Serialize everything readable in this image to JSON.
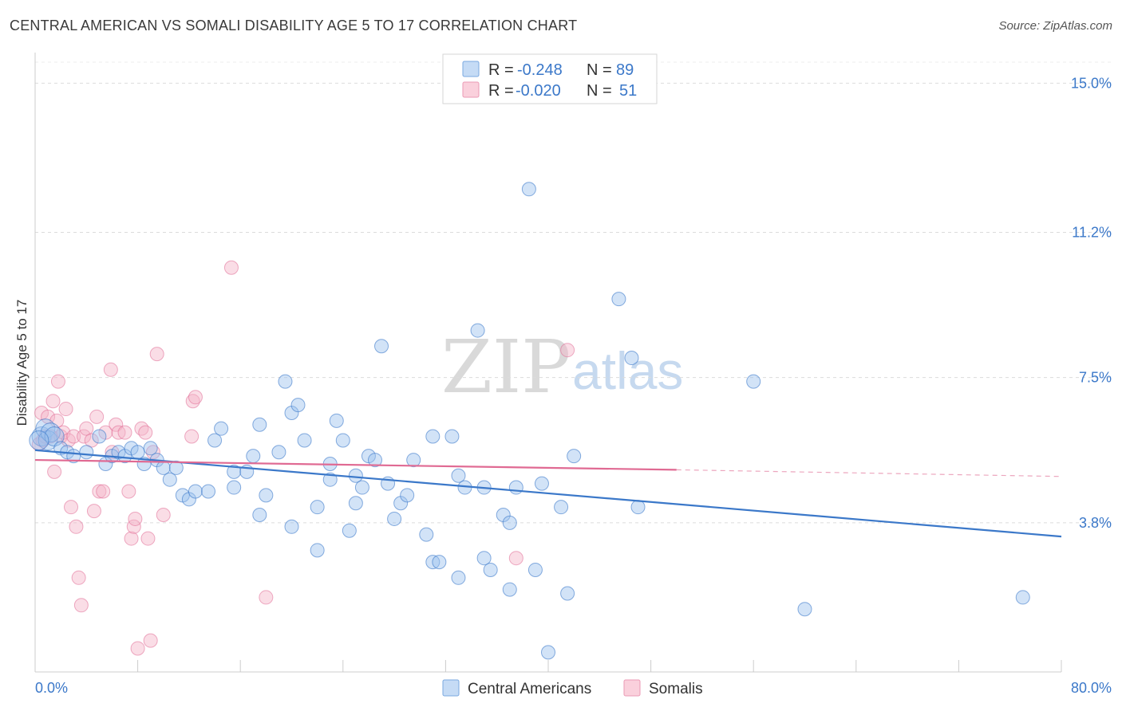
{
  "header": {
    "title": "CENTRAL AMERICAN VS SOMALI DISABILITY AGE 5 TO 17 CORRELATION CHART",
    "source": "Source: ZipAtlas.com"
  },
  "watermark": {
    "zip": "ZIP",
    "atlas": "atlas"
  },
  "legend": {
    "rows": [
      {
        "r_label": "R =",
        "r_value": "-0.248",
        "n_label": "N =",
        "n_value": "89",
        "color": "#9cc2ee"
      },
      {
        "r_label": "R =",
        "r_value": "-0.020",
        "n_label": "N =",
        "n_value": "51",
        "color": "#f4b3c8"
      }
    ]
  },
  "bottom_legend": {
    "items": [
      {
        "label": "Central Americans",
        "color": "#9cc2ee"
      },
      {
        "label": "Somalis",
        "color": "#f4b3c8"
      }
    ]
  },
  "chart_data": {
    "type": "scatter",
    "title": "CENTRAL AMERICAN VS SOMALI DISABILITY AGE 5 TO 17 CORRELATION CHART",
    "xlabel": "",
    "ylabel": "Disability Age 5 to 17",
    "xlim": [
      0,
      80
    ],
    "ylim": [
      0,
      15.9
    ],
    "x_tick_labels": [
      "0.0%",
      "80.0%"
    ],
    "y_ticks": [
      3.8,
      7.5,
      11.2,
      15.0
    ],
    "y_tick_labels": [
      "3.8%",
      "7.5%",
      "11.2%",
      "15.0%"
    ],
    "grid": "horizontal-dashed",
    "legend_position": "top-center",
    "colors": {
      "central": "#3b78c9",
      "central_fill": "#9cc2ee",
      "somali": "#e06a93",
      "somali_fill": "#f4b3c8"
    },
    "series": [
      {
        "name": "Central Americans",
        "trend": {
          "x": [
            0,
            80
          ],
          "y": [
            5.65,
            3.45
          ],
          "dashed_from": null
        },
        "points": [
          [
            0.5,
            6.0
          ],
          [
            0.8,
            6.2
          ],
          [
            1.0,
            5.9
          ],
          [
            1.2,
            6.1
          ],
          [
            1.5,
            6.0
          ],
          [
            2.0,
            5.7
          ],
          [
            2.5,
            5.6
          ],
          [
            3.0,
            5.5
          ],
          [
            4.0,
            5.6
          ],
          [
            5.0,
            6.0
          ],
          [
            5.5,
            5.3
          ],
          [
            6.0,
            5.5
          ],
          [
            6.5,
            5.6
          ],
          [
            7.0,
            5.5
          ],
          [
            7.5,
            5.7
          ],
          [
            8.0,
            5.6
          ],
          [
            8.5,
            5.3
          ],
          [
            9.0,
            5.7
          ],
          [
            9.5,
            5.4
          ],
          [
            10.0,
            5.2
          ],
          [
            10.5,
            4.9
          ],
          [
            11.0,
            5.2
          ],
          [
            11.5,
            4.5
          ],
          [
            12.0,
            4.4
          ],
          [
            12.5,
            4.6
          ],
          [
            13.5,
            4.6
          ],
          [
            14.0,
            5.9
          ],
          [
            14.5,
            6.2
          ],
          [
            15.5,
            5.1
          ],
          [
            15.5,
            4.7
          ],
          [
            16.5,
            5.1
          ],
          [
            17.0,
            5.5
          ],
          [
            17.5,
            6.3
          ],
          [
            17.5,
            4.0
          ],
          [
            18.0,
            4.5
          ],
          [
            19.0,
            5.6
          ],
          [
            19.5,
            7.4
          ],
          [
            20.0,
            3.7
          ],
          [
            20.0,
            6.6
          ],
          [
            20.5,
            6.8
          ],
          [
            21.0,
            5.9
          ],
          [
            22.0,
            3.1
          ],
          [
            22.0,
            4.2
          ],
          [
            23.0,
            5.3
          ],
          [
            23.0,
            4.9
          ],
          [
            23.5,
            6.4
          ],
          [
            24.0,
            5.9
          ],
          [
            24.5,
            3.6
          ],
          [
            25.0,
            4.3
          ],
          [
            25.0,
            5.0
          ],
          [
            25.5,
            4.7
          ],
          [
            26.0,
            5.5
          ],
          [
            26.5,
            5.4
          ],
          [
            27.0,
            8.3
          ],
          [
            27.5,
            4.8
          ],
          [
            28.0,
            3.9
          ],
          [
            28.5,
            4.3
          ],
          [
            29.0,
            4.5
          ],
          [
            29.5,
            5.4
          ],
          [
            30.5,
            3.5
          ],
          [
            31.0,
            6.0
          ],
          [
            31.0,
            2.8
          ],
          [
            31.5,
            2.8
          ],
          [
            32.5,
            6.0
          ],
          [
            33.0,
            2.4
          ],
          [
            33.0,
            5.0
          ],
          [
            33.5,
            4.7
          ],
          [
            34.5,
            8.7
          ],
          [
            35.0,
            2.9
          ],
          [
            35.0,
            4.7
          ],
          [
            35.5,
            2.6
          ],
          [
            36.5,
            4.0
          ],
          [
            37.0,
            3.8
          ],
          [
            37.0,
            2.1
          ],
          [
            37.5,
            4.7
          ],
          [
            38.5,
            12.3
          ],
          [
            39.0,
            2.6
          ],
          [
            39.5,
            4.8
          ],
          [
            40.0,
            0.5
          ],
          [
            41.0,
            4.2
          ],
          [
            41.5,
            2.0
          ],
          [
            42.0,
            5.5
          ],
          [
            45.5,
            9.5
          ],
          [
            46.5,
            8.0
          ],
          [
            47.0,
            4.2
          ],
          [
            56.0,
            7.4
          ],
          [
            60.0,
            1.6
          ],
          [
            77.0,
            1.9
          ],
          [
            0.3,
            5.9
          ]
        ]
      },
      {
        "name": "Somalis",
        "trend": {
          "x": [
            0,
            50
          ],
          "y": [
            5.4,
            5.15
          ],
          "dashed_from": 50,
          "dashed_to": 80,
          "dashed_end_y": 4.98
        },
        "points": [
          [
            0.3,
            5.8
          ],
          [
            0.5,
            6.6
          ],
          [
            0.6,
            5.9
          ],
          [
            0.8,
            6.0
          ],
          [
            1.0,
            6.5
          ],
          [
            1.2,
            6.0
          ],
          [
            1.4,
            6.9
          ],
          [
            1.5,
            5.1
          ],
          [
            1.7,
            6.4
          ],
          [
            1.8,
            7.4
          ],
          [
            2.0,
            6.0
          ],
          [
            2.2,
            6.1
          ],
          [
            2.4,
            6.7
          ],
          [
            2.6,
            5.9
          ],
          [
            2.8,
            4.2
          ],
          [
            3.0,
            6.0
          ],
          [
            3.2,
            3.7
          ],
          [
            3.4,
            2.4
          ],
          [
            3.6,
            1.7
          ],
          [
            3.8,
            6.0
          ],
          [
            4.0,
            6.2
          ],
          [
            4.4,
            5.9
          ],
          [
            4.6,
            4.1
          ],
          [
            4.8,
            6.5
          ],
          [
            5.0,
            4.6
          ],
          [
            5.3,
            4.6
          ],
          [
            5.5,
            6.1
          ],
          [
            5.9,
            7.7
          ],
          [
            6.0,
            5.6
          ],
          [
            6.3,
            6.3
          ],
          [
            6.5,
            6.1
          ],
          [
            7.0,
            6.1
          ],
          [
            7.3,
            4.6
          ],
          [
            7.5,
            3.4
          ],
          [
            7.7,
            3.7
          ],
          [
            7.8,
            3.9
          ],
          [
            8.0,
            0.6
          ],
          [
            8.3,
            6.2
          ],
          [
            8.6,
            6.1
          ],
          [
            8.8,
            3.4
          ],
          [
            9.0,
            0.8
          ],
          [
            9.2,
            5.6
          ],
          [
            9.5,
            8.1
          ],
          [
            10.0,
            4.0
          ],
          [
            12.2,
            6.0
          ],
          [
            12.3,
            6.9
          ],
          [
            12.5,
            7.0
          ],
          [
            15.3,
            10.3
          ],
          [
            18.0,
            1.9
          ],
          [
            37.5,
            2.9
          ],
          [
            41.5,
            8.2
          ]
        ]
      }
    ]
  }
}
